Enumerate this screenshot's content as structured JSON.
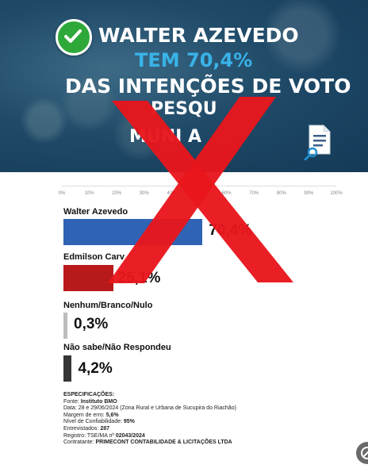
{
  "banner": {
    "line1": "WALTER AZEVEDO",
    "line2": "TEM  70,4%",
    "line3": "DAS INTENÇÕES DE VOTO",
    "line4": "PESQU",
    "line5": "MUNI A",
    "icons": {
      "check": "check-icon",
      "document": "document-search-icon"
    },
    "colors": {
      "highlight": "#39b3e8",
      "check": "#2fa83a"
    }
  },
  "chart_data": {
    "type": "bar",
    "orientation": "horizontal",
    "xlim": [
      0,
      100
    ],
    "ticks": [
      "0%",
      "10%",
      "20%",
      "30%",
      "40%",
      "50%",
      "60%",
      "70%",
      "80%",
      "90%",
      "100%"
    ],
    "categories": [
      "Walter Azevedo",
      "Edmilson Carv",
      "Nenhum/Branco/Nulo",
      "Não sabe/Não Respondeu"
    ],
    "values": [
      70.4,
      25.1,
      0.3,
      4.2
    ],
    "value_labels": [
      "70,4%",
      "25,1%",
      "0,3%",
      "4,2%"
    ],
    "colors": [
      "#2f63b4",
      "#b8191b",
      "#bdbdbd",
      "#353535"
    ]
  },
  "specs": {
    "title": "ESPECIFICAÇÕES:",
    "lines": [
      {
        "label": "Fonte: ",
        "value": "Instituto BMO",
        "bold": true
      },
      {
        "label": "Data: ",
        "value": "28 e 29/06/2024 (Zona Rural e Urbana de Sucupira do Riachão)",
        "bold": false
      },
      {
        "label": "Margem de erro: ",
        "value": "5,6%",
        "bold": true
      },
      {
        "label": "Nível de Confiabilidade: ",
        "value": "95%",
        "bold": true
      },
      {
        "label": "Entrevistados: ",
        "value": "287",
        "bold": true
      },
      {
        "label": "Registro: TSE/MA nº ",
        "value": "02043/2024",
        "bold": true
      },
      {
        "label": "Contratante: ",
        "value": "PRIMECONT CONTABILIDADE & LICITAÇÕES LTDA",
        "bold": true
      }
    ]
  },
  "overlay": {
    "icon": "red-x-icon",
    "color": "#e8161c"
  },
  "corner": {
    "icon": "no-entry-icon"
  }
}
